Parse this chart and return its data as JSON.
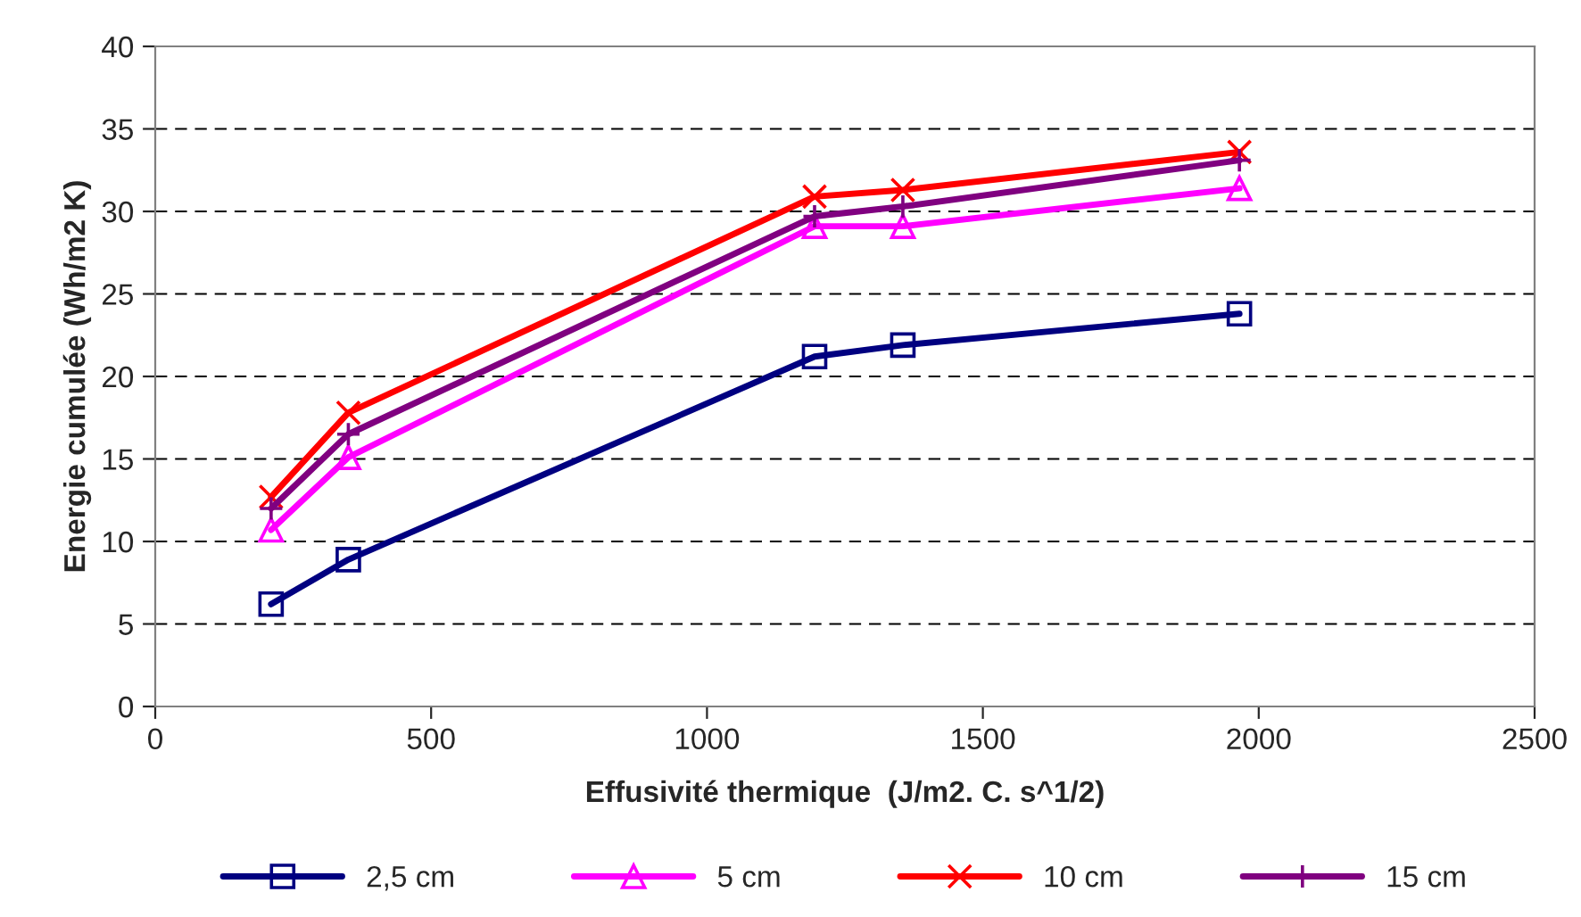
{
  "chart_data": {
    "type": "line",
    "xlabel": "Effusivité thermique  (J/m2. C. s^1/2)",
    "ylabel": "Energie cumulée (Wh/m2 K)",
    "x": [
      210,
      350,
      1195,
      1355,
      1965
    ],
    "series": [
      {
        "name": "2,5 cm",
        "color": "#000080",
        "marker": "square",
        "values": [
          6.2,
          8.9,
          21.2,
          21.9,
          23.8
        ]
      },
      {
        "name": "5 cm",
        "color": "#ff00ff",
        "marker": "triangle",
        "values": [
          10.7,
          15.1,
          29.1,
          29.1,
          31.4
        ]
      },
      {
        "name": "10 cm",
        "color": "#ff0000",
        "marker": "cross",
        "values": [
          12.7,
          17.8,
          30.9,
          31.3,
          33.6
        ]
      },
      {
        "name": "15 cm",
        "color": "#800080",
        "marker": "plus",
        "values": [
          12.0,
          16.5,
          29.7,
          30.3,
          33.1
        ]
      }
    ],
    "xlim": [
      0,
      2500
    ],
    "xticks": [
      0,
      500,
      1000,
      1500,
      2000,
      2500
    ],
    "ylim": [
      0,
      40
    ],
    "yticks": [
      0,
      5,
      10,
      15,
      20,
      25,
      30,
      35,
      40
    ],
    "grid": "y",
    "legend": "bottom",
    "line_style": "solid"
  }
}
